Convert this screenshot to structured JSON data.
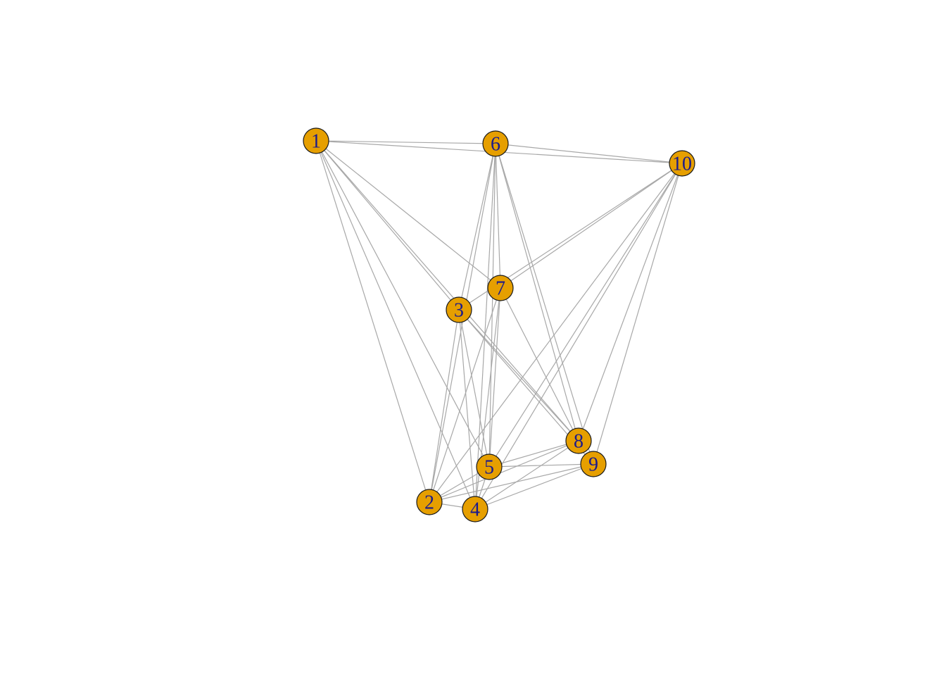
{
  "graph": {
    "node_fill": "#E69F00",
    "label_color": "#1A1A8C",
    "edge_color": "#A8A8A8",
    "nodes": [
      {
        "id": "1",
        "label": "1"
      },
      {
        "id": "2",
        "label": "2"
      },
      {
        "id": "3",
        "label": "3"
      },
      {
        "id": "4",
        "label": "4"
      },
      {
        "id": "5",
        "label": "5"
      },
      {
        "id": "6",
        "label": "6"
      },
      {
        "id": "7",
        "label": "7"
      },
      {
        "id": "8",
        "label": "8"
      },
      {
        "id": "9",
        "label": "9"
      },
      {
        "id": "10",
        "label": "10"
      }
    ],
    "edges": [
      [
        "1",
        "6"
      ],
      [
        "1",
        "10"
      ],
      [
        "1",
        "3"
      ],
      [
        "1",
        "7"
      ],
      [
        "1",
        "8"
      ],
      [
        "1",
        "2"
      ],
      [
        "1",
        "4"
      ],
      [
        "1",
        "5"
      ],
      [
        "6",
        "10"
      ],
      [
        "6",
        "3"
      ],
      [
        "6",
        "7"
      ],
      [
        "6",
        "5"
      ],
      [
        "6",
        "2"
      ],
      [
        "6",
        "8"
      ],
      [
        "6",
        "9"
      ],
      [
        "6",
        "4"
      ],
      [
        "10",
        "3"
      ],
      [
        "10",
        "7"
      ],
      [
        "10",
        "2"
      ],
      [
        "10",
        "4"
      ],
      [
        "10",
        "5"
      ],
      [
        "10",
        "8"
      ],
      [
        "10",
        "9"
      ],
      [
        "3",
        "8"
      ],
      [
        "3",
        "9"
      ],
      [
        "3",
        "2"
      ],
      [
        "3",
        "4"
      ],
      [
        "3",
        "5"
      ],
      [
        "7",
        "2"
      ],
      [
        "7",
        "4"
      ],
      [
        "7",
        "5"
      ],
      [
        "7",
        "8"
      ],
      [
        "8",
        "2"
      ],
      [
        "8",
        "4"
      ],
      [
        "8",
        "5"
      ],
      [
        "9",
        "2"
      ],
      [
        "9",
        "4"
      ],
      [
        "9",
        "5"
      ],
      [
        "2",
        "4"
      ],
      [
        "2",
        "5"
      ],
      [
        "4",
        "5"
      ]
    ]
  }
}
